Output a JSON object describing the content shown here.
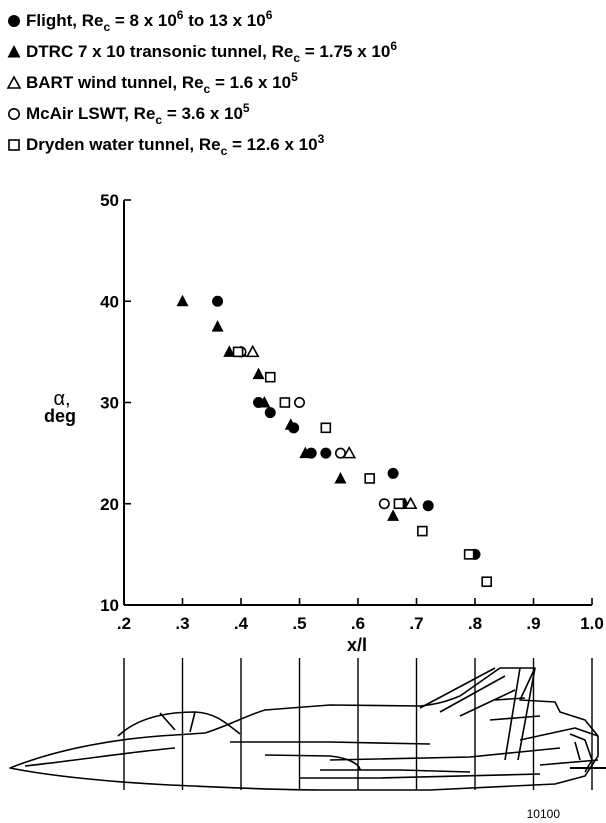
{
  "chart_data": {
    "type": "scatter",
    "xlabel": "x/l",
    "ylabel_symbol": "α,",
    "ylabel_unit": "deg",
    "xlim": [
      0.2,
      1.0
    ],
    "ylim": [
      10,
      50
    ],
    "x_ticks": [
      ".2",
      ".3",
      ".4",
      ".5",
      ".6",
      ".7",
      ".8",
      ".9",
      "1.0"
    ],
    "y_ticks": [
      "10",
      "20",
      "30",
      "40",
      "50"
    ],
    "grid": false,
    "legend_position": "top-left",
    "figure_number": "10100",
    "series": [
      {
        "name": "Flight, Re_c = 8 x 10^6 to 13 x 10^6",
        "legend": {
          "text1": "Flight, Re",
          "sub": "c",
          "text2": " = 8 x 10",
          "sup": "6",
          "text3": " to 13 x 10",
          "sup2": "6"
        },
        "marker": "filled-circle",
        "points": [
          [
            0.36,
            40
          ],
          [
            0.43,
            30
          ],
          [
            0.45,
            29
          ],
          [
            0.49,
            27.5
          ],
          [
            0.52,
            25
          ],
          [
            0.545,
            25
          ],
          [
            0.66,
            23
          ],
          [
            0.675,
            20
          ],
          [
            0.72,
            19.8
          ],
          [
            0.8,
            15
          ]
        ]
      },
      {
        "name": "DTRC 7 x 10 transonic tunnel, Re_c = 1.75 x 10^6",
        "legend": {
          "text1": "DTRC 7 x 10 transonic tunnel, Re",
          "sub": "c",
          "text2": " = 1.75 x 10",
          "sup": "6"
        },
        "marker": "filled-triangle",
        "points": [
          [
            0.3,
            40
          ],
          [
            0.36,
            37.5
          ],
          [
            0.38,
            35
          ],
          [
            0.4,
            35
          ],
          [
            0.43,
            32.8
          ],
          [
            0.44,
            30
          ],
          [
            0.485,
            27.8
          ],
          [
            0.51,
            25
          ],
          [
            0.57,
            22.5
          ],
          [
            0.66,
            18.8
          ],
          [
            0.68,
            20
          ]
        ]
      },
      {
        "name": "BART wind tunnel, Re_c = 1.6 x 10^5",
        "legend": {
          "text1": "BART wind tunnel, Re",
          "sub": "c",
          "text2": " = 1.6 x 10",
          "sup": "5"
        },
        "marker": "open-triangle",
        "points": [
          [
            0.42,
            35
          ],
          [
            0.585,
            25
          ],
          [
            0.69,
            20
          ]
        ]
      },
      {
        "name": "McAir LSWT, Re_c = 3.6 x 10^5",
        "legend": {
          "text1": "McAir LSWT, Re",
          "sub": "c",
          "text2": " = 3.6 x 10",
          "sup": "5"
        },
        "marker": "open-circle",
        "points": [
          [
            0.4,
            35
          ],
          [
            0.5,
            30
          ],
          [
            0.57,
            25
          ],
          [
            0.645,
            20
          ]
        ]
      },
      {
        "name": "Dryden water tunnel, Re_c = 12.6 x 10^3",
        "legend": {
          "text1": "Dryden water tunnel, Re",
          "sub": "c",
          "text2": " = 12.6 x 10",
          "sup": "3"
        },
        "marker": "open-square",
        "points": [
          [
            0.395,
            35
          ],
          [
            0.45,
            32.5
          ],
          [
            0.475,
            30
          ],
          [
            0.545,
            27.5
          ],
          [
            0.62,
            22.5
          ],
          [
            0.67,
            20
          ],
          [
            0.71,
            17.3
          ],
          [
            0.79,
            15
          ],
          [
            0.82,
            12.3
          ]
        ]
      }
    ]
  }
}
